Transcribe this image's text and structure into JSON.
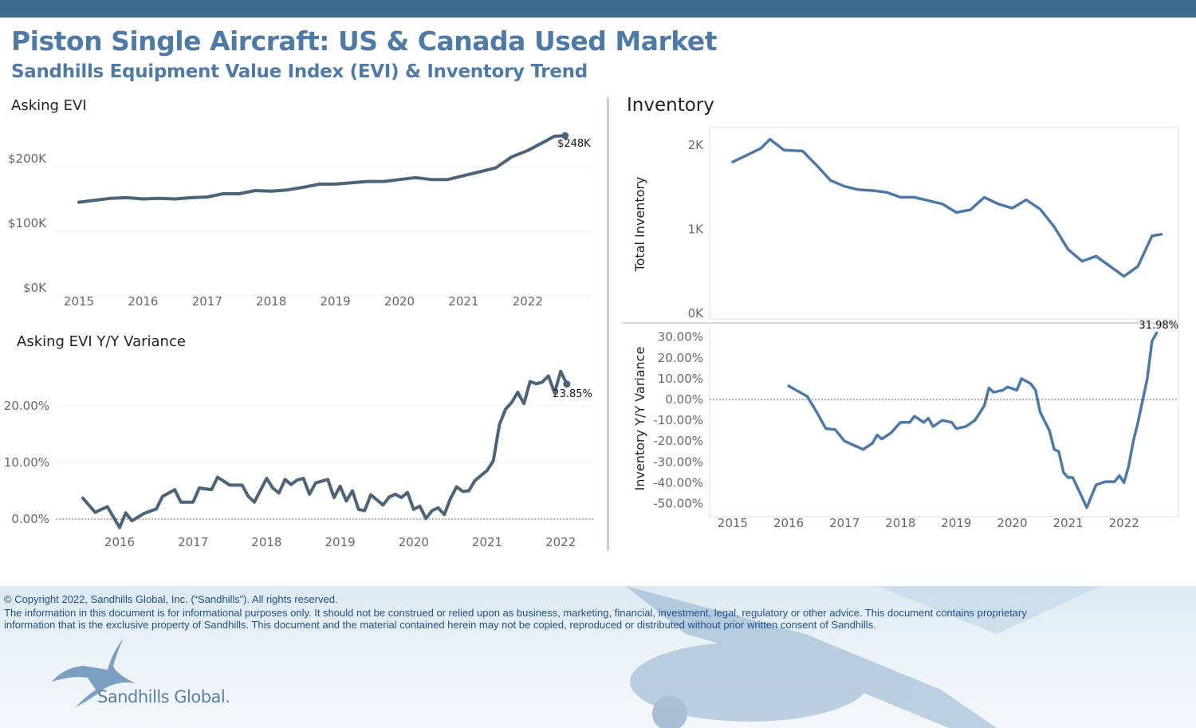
{
  "header": {
    "title": "Piston Single Aircraft:  US & Canada Used Market",
    "subtitle": "Sandhills Equipment Value Index (EVI) & Inventory Trend"
  },
  "colors": {
    "top_bar": "#3e6a8f",
    "title": "#4f7aa6",
    "evi_line": "#4b6478",
    "inventory_line": "#4e79a7",
    "footer_text": "#1f4e8c"
  },
  "footer": {
    "copyright": "© Copyright 2022, Sandhills Global, Inc. (“Sandhills”). All rights reserved.",
    "disclaimer_1": "The information in this document is for informational purposes only.  It should not be construed or relied upon as business, marketing, financial, investment, legal, regulatory or other advice. This document contains proprietary",
    "disclaimer_2": "information that is the exclusive property of Sandhills. This document and the material contained herein may not be copied, reproduced or distributed without prior written consent of Sandhills.",
    "logo": "Sandhills Global."
  },
  "chart_data": [
    {
      "id": "evi",
      "type": "line",
      "title": "Asking EVI",
      "xlabel": "",
      "ylabel": "",
      "ylim": [
        0,
        260
      ],
      "yticks": [
        {
          "v": 0,
          "label": "$0K"
        },
        {
          "v": 100,
          "label": "$100K"
        },
        {
          "v": 200,
          "label": "$200K"
        }
      ],
      "xticks": [
        "2015",
        "2016",
        "2017",
        "2018",
        "2019",
        "2020",
        "2021",
        "2022"
      ],
      "end_label": "$248K",
      "grid": true,
      "unit": "thousand USD",
      "x": [
        "2015-01",
        "2015-04",
        "2015-07",
        "2015-10",
        "2016-01",
        "2016-04",
        "2016-07",
        "2016-10",
        "2017-01",
        "2017-04",
        "2017-07",
        "2017-10",
        "2018-01",
        "2018-04",
        "2018-07",
        "2018-10",
        "2019-01",
        "2019-04",
        "2019-07",
        "2019-10",
        "2020-01",
        "2020-04",
        "2020-07",
        "2020-10",
        "2021-01",
        "2021-04",
        "2021-07",
        "2021-10",
        "2022-01",
        "2022-04",
        "2022-06",
        "2022-08"
      ],
      "values": [
        145,
        148,
        151,
        152,
        150,
        151,
        150,
        152,
        153,
        158,
        158,
        163,
        162,
        164,
        168,
        173,
        173,
        175,
        177,
        177,
        180,
        183,
        180,
        180,
        186,
        192,
        198,
        215,
        225,
        238,
        247,
        248
      ]
    },
    {
      "id": "evi_yy",
      "type": "line",
      "title": "Asking EVI Y/Y Variance",
      "xlabel": "",
      "ylabel": "",
      "ylim": [
        -3,
        27
      ],
      "yticks": [
        {
          "v": 0,
          "label": "0.00%"
        },
        {
          "v": 10,
          "label": "10.00%"
        },
        {
          "v": 20,
          "label": "20.00%"
        }
      ],
      "xticks": [
        "2016",
        "2017",
        "2018",
        "2019",
        "2020",
        "2021",
        "2022"
      ],
      "end_label": "23.85%",
      "grid": true,
      "zero_line": true,
      "x": [
        "2015-07",
        "2015-09",
        "2015-11",
        "2016-01",
        "2016-02",
        "2016-03",
        "2016-05",
        "2016-07",
        "2016-08",
        "2016-10",
        "2016-11",
        "2017-01",
        "2017-02",
        "2017-04",
        "2017-05",
        "2017-07",
        "2017-09",
        "2017-10",
        "2017-11",
        "2018-01",
        "2018-02",
        "2018-03",
        "2018-04",
        "2018-05",
        "2018-06",
        "2018-07",
        "2018-08",
        "2018-09",
        "2018-11",
        "2018-12",
        "2019-01",
        "2019-02",
        "2019-03",
        "2019-04",
        "2019-05",
        "2019-06",
        "2019-08",
        "2019-09",
        "2019-10",
        "2019-11",
        "2019-12",
        "2020-01",
        "2020-02",
        "2020-03",
        "2020-04",
        "2020-05",
        "2020-06",
        "2020-07",
        "2020-08",
        "2020-09",
        "2020-10",
        "2020-11",
        "2021-01",
        "2021-02",
        "2021-03",
        "2021-04",
        "2021-05",
        "2021-06",
        "2021-07",
        "2021-08",
        "2021-09",
        "2021-10",
        "2021-11",
        "2021-12",
        "2022-01",
        "2022-02"
      ],
      "values": [
        3.7,
        1.2,
        2.2,
        -1.5,
        1.1,
        -0.3,
        1.0,
        1.8,
        4.0,
        5.2,
        3.0,
        3.0,
        5.5,
        5.2,
        7.4,
        6.0,
        6.0,
        4.0,
        3.0,
        7.2,
        5.5,
        4.6,
        7.0,
        6.1,
        6.9,
        7.2,
        4.4,
        6.4,
        7.0,
        3.8,
        5.8,
        3.2,
        5.0,
        1.7,
        1.5,
        4.3,
        2.5,
        3.9,
        4.4,
        3.8,
        4.7,
        1.7,
        2.3,
        0.1,
        1.5,
        2.0,
        0.8,
        3.6,
        5.7,
        4.9,
        5.0,
        6.8,
        8.6,
        10.3,
        16.7,
        19.4,
        20.6,
        22.4,
        20.4,
        24.3,
        23.9,
        24.2,
        25.3,
        22.3,
        26.1,
        23.85
      ]
    },
    {
      "id": "inv",
      "type": "line",
      "title": "Inventory",
      "xlabel": "",
      "ylabel": "Total Inventory",
      "ylim": [
        0,
        2150
      ],
      "yticks": [
        {
          "v": 0,
          "label": "0K"
        },
        {
          "v": 1000,
          "label": "1K"
        },
        {
          "v": 2000,
          "label": "2K"
        }
      ],
      "xticks": [],
      "grid": false,
      "x": [
        "2015-01",
        "2015-04",
        "2015-07",
        "2015-09",
        "2015-12",
        "2016-04",
        "2016-07",
        "2016-10",
        "2017-01",
        "2017-04",
        "2017-07",
        "2017-10",
        "2018-01",
        "2018-04",
        "2018-07",
        "2018-10",
        "2019-01",
        "2019-04",
        "2019-07",
        "2019-10",
        "2020-01",
        "2020-04",
        "2020-07",
        "2020-10",
        "2021-01",
        "2021-04",
        "2021-07",
        "2021-10",
        "2022-01",
        "2022-04",
        "2022-07",
        "2022-09"
      ],
      "values": [
        1800,
        1880,
        1960,
        2070,
        1940,
        1930,
        1760,
        1580,
        1510,
        1470,
        1460,
        1440,
        1380,
        1380,
        1340,
        1300,
        1200,
        1230,
        1380,
        1300,
        1250,
        1350,
        1240,
        1030,
        760,
        620,
        680,
        560,
        440,
        560,
        920,
        940
      ]
    },
    {
      "id": "inv_yy",
      "type": "line",
      "title": "",
      "xlabel": "",
      "ylabel": "Inventory  Y/Y Variance",
      "ylim": [
        -56,
        36
      ],
      "yticks": [
        {
          "v": 30,
          "label": "30.00%"
        },
        {
          "v": 20,
          "label": "20.00%"
        },
        {
          "v": 10,
          "label": "10.00%"
        },
        {
          "v": 0,
          "label": "0.00%"
        },
        {
          "v": -10,
          "label": "-10.00%"
        },
        {
          "v": -20,
          "label": "-20.00%"
        },
        {
          "v": -30,
          "label": "-30.00%"
        },
        {
          "v": -40,
          "label": "-40.00%"
        },
        {
          "v": -50,
          "label": "-50.00%"
        }
      ],
      "xticks": [
        "2015",
        "2016",
        "2017",
        "2018",
        "2019",
        "2020",
        "2021",
        "2022"
      ],
      "end_label": "31.98%",
      "grid": false,
      "zero_line": true,
      "x": [
        "2016-01",
        "2016-03",
        "2016-05",
        "2016-07",
        "2016-09",
        "2016-11",
        "2017-01",
        "2017-03",
        "2017-05",
        "2017-07",
        "2017-08",
        "2017-09",
        "2017-11",
        "2018-01",
        "2018-03",
        "2018-04",
        "2018-06",
        "2018-07",
        "2018-08",
        "2018-10",
        "2018-12",
        "2019-01",
        "2019-03",
        "2019-05",
        "2019-07",
        "2019-08",
        "2019-09",
        "2019-11",
        "2019-12",
        "2020-02",
        "2020-03",
        "2020-05",
        "2020-06",
        "2020-07",
        "2020-09",
        "2020-10",
        "2020-11",
        "2020-12",
        "2021-01",
        "2021-02",
        "2021-04",
        "2021-05",
        "2021-07",
        "2021-09",
        "2021-11",
        "2021-12",
        "2022-01",
        "2022-02",
        "2022-03",
        "2022-04",
        "2022-06",
        "2022-07",
        "2022-08"
      ],
      "values": [
        6.5,
        4,
        1.5,
        -6,
        -14,
        -14.5,
        -20,
        -22,
        -24,
        -21,
        -17,
        -19,
        -16,
        -11,
        -11,
        -8,
        -11,
        -9,
        -13,
        -10,
        -11,
        -14,
        -13,
        -10,
        -3,
        5.5,
        3.5,
        4.5,
        6,
        4.5,
        10,
        7.5,
        4.5,
        -6,
        -15,
        -24,
        -25,
        -35,
        -37.5,
        -37.5,
        -47,
        -52,
        -41,
        -39.5,
        -39.5,
        -36.5,
        -40,
        -32,
        -20,
        -11,
        10,
        28,
        31.98
      ]
    }
  ]
}
